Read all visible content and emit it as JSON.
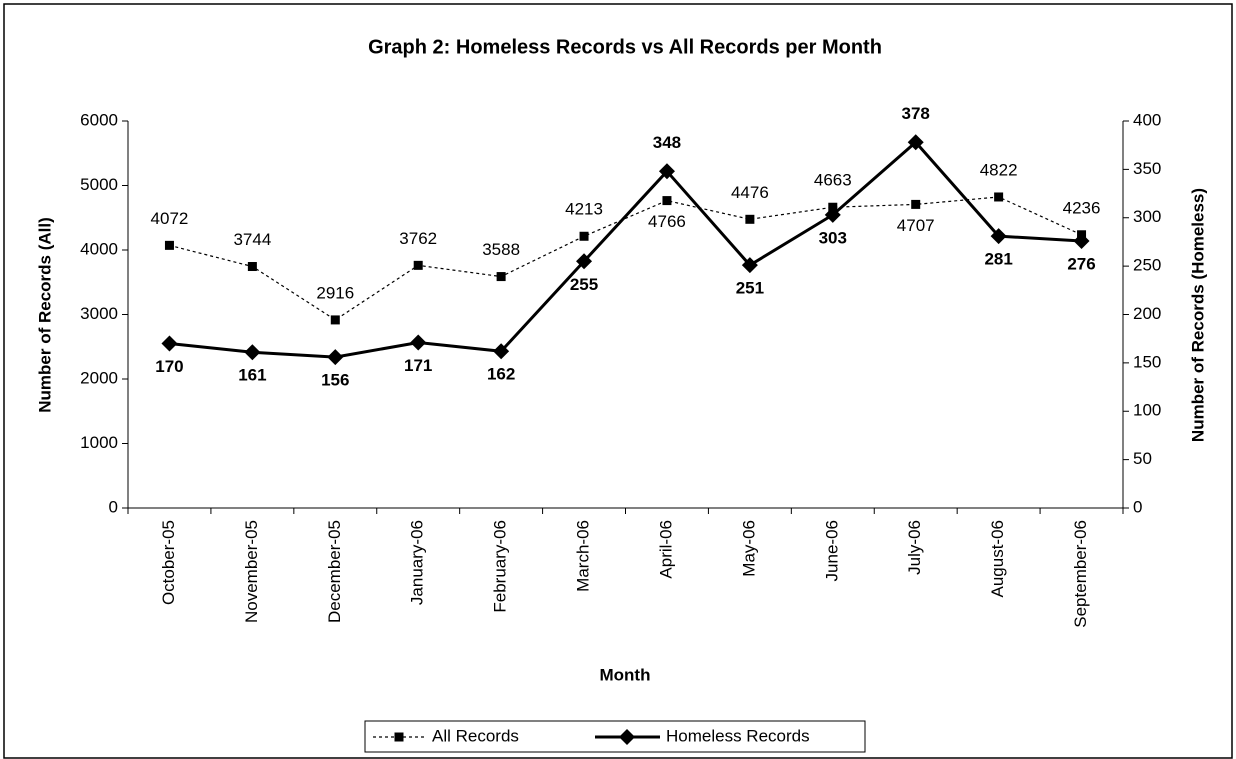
{
  "chart_data": {
    "type": "line",
    "title": "Graph 2: Homeless Records vs All Records per Month",
    "x_label": "Month",
    "y_label": "Number of Records (All)",
    "y2_label": "Number of Records (Homeless)",
    "categories": [
      "October-05",
      "November-05",
      "December-05",
      "January-06",
      "February-06",
      "March-06",
      "April-06",
      "May-06",
      "June-06",
      "July-06",
      "August-06",
      "September-06"
    ],
    "series": [
      {
        "name": "All Records",
        "color": "#000000",
        "values": [
          4072,
          3744,
          2916,
          3762,
          3588,
          4213,
          4766,
          4476,
          4663,
          4707,
          4822,
          4236
        ]
      },
      {
        "name": "Homeless Records",
        "color": "#000000",
        "axis": "y2",
        "values": [
          170,
          161,
          156,
          171,
          162,
          255,
          348,
          251,
          303,
          378,
          281,
          276
        ]
      }
    ],
    "ylim": [
      0,
      6000
    ],
    "yticks": [
      0,
      1000,
      2000,
      3000,
      4000,
      5000,
      6000
    ],
    "y2lim": [
      0,
      400
    ],
    "y2ticks": [
      0,
      50,
      100,
      150,
      200,
      250,
      300,
      350,
      400
    ],
    "legend": "bottom"
  }
}
